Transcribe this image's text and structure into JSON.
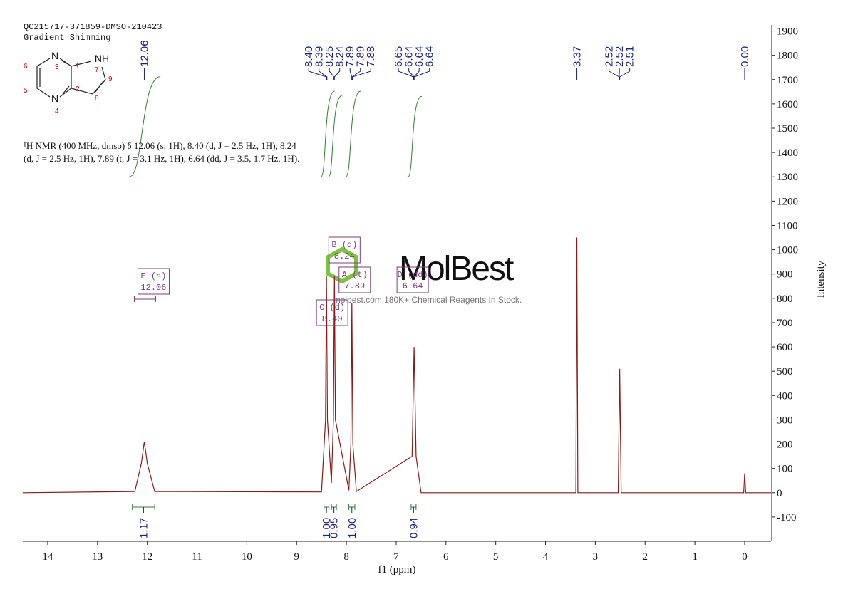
{
  "header": {
    "sample": "QC215717-371859-DMSO-210423",
    "method": "Gradient Shimming"
  },
  "description": "¹H NMR (400 MHz, dmso) δ 12.06 (s, 1H), 8.40 (d, J = 2.5 Hz, 1H), 8.24 (d, J = 2.5 Hz, 1H), 7.89 (t, J = 3.1 Hz, 1H), 6.64 (dd, J = 3.5, 1.7 Hz, 1H).",
  "structure": {
    "atoms": [
      "N",
      "NH",
      "N"
    ],
    "numbers": [
      "1",
      "2",
      "3",
      "4",
      "5",
      "6",
      "7",
      "8",
      "9"
    ]
  },
  "watermark": {
    "brand": "MolBest",
    "tagline": "molbest.com,180K+ Chemical Reagents In Stock."
  },
  "chart_data": {
    "type": "line",
    "color": "#8b1a1a",
    "x_label": "f1 (ppm)",
    "y_label": "Intensity",
    "x": [
      14.5,
      12.25,
      12.12,
      12.06,
      12.0,
      11.85,
      8.5,
      8.42,
      8.4,
      8.38,
      8.3,
      8.26,
      8.24,
      8.22,
      7.95,
      7.91,
      7.89,
      7.87,
      7.8,
      6.68,
      6.64,
      6.6,
      6.5,
      3.39,
      3.37,
      3.35,
      2.54,
      2.51,
      2.48,
      0.02,
      0.0,
      -0.02,
      -0.53
    ],
    "values": [
      0,
      5,
      120,
      210,
      120,
      5,
      3,
      300,
      890,
      300,
      40,
      300,
      890,
      300,
      10,
      200,
      780,
      200,
      5,
      150,
      600,
      150,
      0,
      0,
      1050,
      0,
      0,
      510,
      0,
      0,
      80,
      0,
      0
    ],
    "xlim": [
      14.5,
      -0.53
    ],
    "ylim": [
      -200,
      1925
    ],
    "xticks": [
      14,
      13,
      12,
      11,
      10,
      9,
      8,
      7,
      6,
      5,
      4,
      3,
      2,
      1,
      0
    ],
    "yticks": [
      -100,
      0,
      100,
      200,
      300,
      400,
      500,
      600,
      700,
      800,
      900,
      1000,
      1100,
      1200,
      1300,
      1400,
      1500,
      1600,
      1700,
      1800,
      1900
    ],
    "peak_labels": [
      {
        "value": 12.06,
        "label": "12.06"
      },
      {
        "value": 8.4,
        "label": "8.40"
      },
      {
        "value": 8.39,
        "label": "8.39"
      },
      {
        "value": 8.25,
        "label": "8.25"
      },
      {
        "value": 8.24,
        "label": "8.24"
      },
      {
        "value": 7.89,
        "label": "7.89"
      },
      {
        "value": 7.89,
        "label": "7.89"
      },
      {
        "value": 7.88,
        "label": "7.88"
      },
      {
        "value": 6.65,
        "label": "6.65"
      },
      {
        "value": 6.64,
        "label": "6.64"
      },
      {
        "value": 6.64,
        "label": "6.64"
      },
      {
        "value": 6.64,
        "label": "6.64"
      },
      {
        "value": 3.37,
        "label": "3.37"
      },
      {
        "value": 2.52,
        "label": "2.52"
      },
      {
        "value": 2.52,
        "label": "2.52"
      },
      {
        "value": 2.51,
        "label": "2.51"
      },
      {
        "value": 0.0,
        "label": "0.00"
      }
    ],
    "integrals": [
      {
        "range": [
          12.3,
          11.85
        ],
        "value": 1.17,
        "label": "1.17"
      },
      {
        "range": [
          8.45,
          8.35
        ],
        "value": 1.0,
        "label": "1.00"
      },
      {
        "range": [
          8.3,
          8.2
        ],
        "value": 0.95,
        "label": "0.95"
      },
      {
        "range": [
          7.95,
          7.83
        ],
        "value": 1.0,
        "label": "1.00"
      },
      {
        "range": [
          6.7,
          6.6
        ],
        "value": 0.94,
        "label": "0.94"
      }
    ],
    "multiplets": [
      {
        "name": "E (s)",
        "shift": "12.06"
      },
      {
        "name": "B (d)",
        "shift": "8.24"
      },
      {
        "name": "A (t)",
        "shift": "7.89"
      },
      {
        "name": "D (dd)",
        "shift": "6.64"
      },
      {
        "name": "C (d)",
        "shift": "8.40"
      }
    ]
  }
}
